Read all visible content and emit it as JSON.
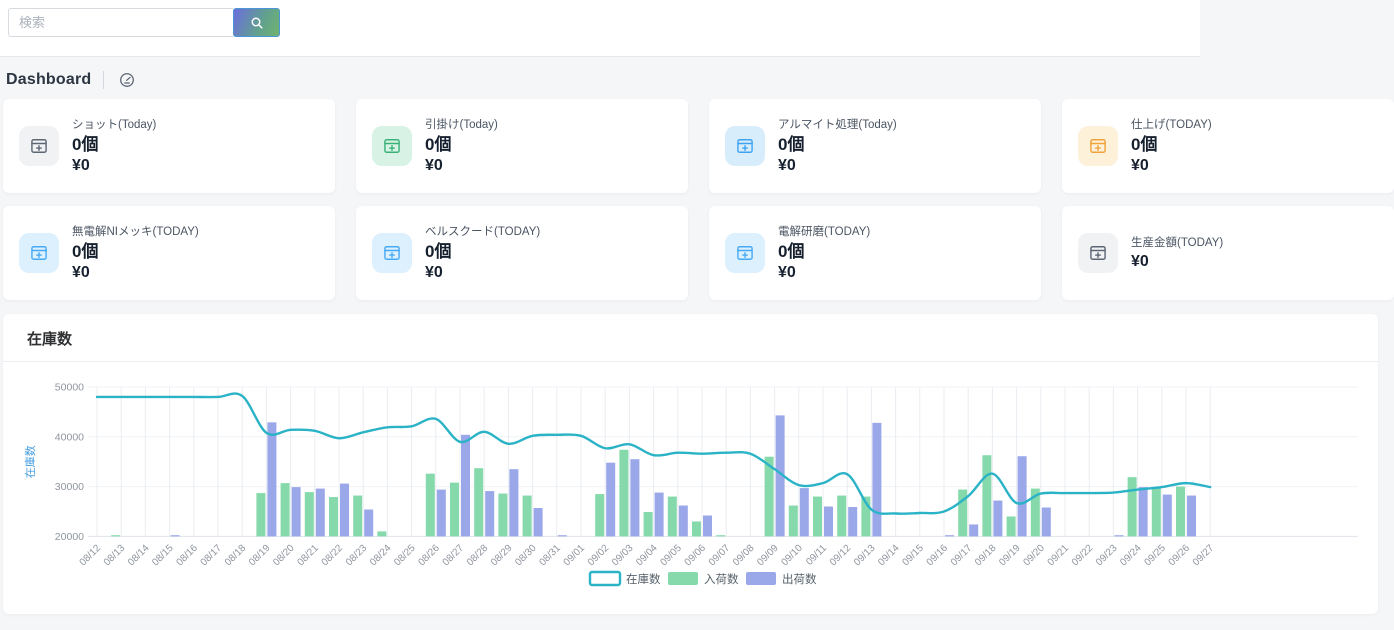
{
  "topbar": {
    "search_placeholder": "検索",
    "search_icon": "magnifier"
  },
  "page": {
    "title": "Dashboard",
    "title_icon": "gauge-dashboard"
  },
  "stat_cards": [
    {
      "label": "ショット(Today)",
      "count": "0個",
      "amount": "¥0",
      "icon": "machine-calendar-icon",
      "icon_bg": "#f1f2f4",
      "icon_color": "#5d6673"
    },
    {
      "label": "引掛け(Today)",
      "count": "0個",
      "amount": "¥0",
      "icon": "machine-calendar-icon",
      "icon_bg": "#d8f3e5",
      "icon_color": "#38b277"
    },
    {
      "label": "アルマイト処理(Today)",
      "count": "0個",
      "amount": "¥0",
      "icon": "machine-calendar-icon",
      "icon_bg": "#d8edfb",
      "icon_color": "#3ea4f2"
    },
    {
      "label": "仕上げ(TODAY)",
      "count": "0個",
      "amount": "¥0",
      "icon": "machine-calendar-icon",
      "icon_bg": "#fdf1d9",
      "icon_color": "#f0a23b"
    },
    {
      "label": "無電解NIメッキ(TODAY)",
      "count": "0個",
      "amount": "¥0",
      "icon": "machine-calendar-icon",
      "icon_bg": "#dcf0fd",
      "icon_color": "#47aaf6"
    },
    {
      "label": "ベルスクード(TODAY)",
      "count": "0個",
      "amount": "¥0",
      "icon": "machine-calendar-icon",
      "icon_bg": "#dcf0fd",
      "icon_color": "#47aaf6"
    },
    {
      "label": "電解研磨(TODAY)",
      "count": "0個",
      "amount": "¥0",
      "icon": "machine-calendar-icon",
      "icon_bg": "#dcf0fd",
      "icon_color": "#47aaf6"
    },
    {
      "label": "生産金額(TODAY)",
      "count": null,
      "amount": "¥0",
      "icon": "machine-calendar-icon",
      "icon_bg": "#f1f2f4",
      "icon_color": "#5d6673"
    }
  ],
  "inventory_section": {
    "title": "在庫数"
  },
  "chart_data": {
    "type": "line+bar",
    "title": "在庫数",
    "ylabel": "在庫数",
    "ylabel_color": "#459de0",
    "ylim": [
      20000,
      50000
    ],
    "y_ticks": [
      20000,
      30000,
      40000,
      50000
    ],
    "grid": true,
    "legend_position": "bottom-center",
    "categories": [
      "08/12",
      "08/13",
      "08/14",
      "08/15",
      "08/16",
      "08/17",
      "08/18",
      "08/19",
      "08/20",
      "08/21",
      "08/22",
      "08/23",
      "08/24",
      "08/25",
      "08/26",
      "08/27",
      "08/28",
      "08/29",
      "08/30",
      "08/31",
      "09/01",
      "09/02",
      "09/03",
      "09/04",
      "09/05",
      "09/06",
      "09/07",
      "09/08",
      "09/09",
      "09/10",
      "09/11",
      "09/12",
      "09/13",
      "09/14",
      "09/15",
      "09/16",
      "09/17",
      "09/18",
      "09/19",
      "09/20",
      "09/21",
      "09/22",
      "09/23",
      "09/24",
      "09/25",
      "09/26",
      "09/27"
    ],
    "series": [
      {
        "name": "在庫数",
        "type": "line",
        "color": "#2ab3c6",
        "values": [
          48000,
          48000,
          48000,
          48000,
          48000,
          48000,
          48200,
          40800,
          41400,
          41200,
          39700,
          40900,
          41900,
          42100,
          43600,
          39000,
          41000,
          38600,
          40200,
          40400,
          40200,
          37700,
          38500,
          36300,
          36800,
          36600,
          36800,
          36600,
          33500,
          30300,
          30700,
          32500,
          25400,
          24600,
          24700,
          25000,
          28100,
          32600,
          26700,
          28600,
          28700,
          28700,
          28800,
          29400,
          29900,
          30700,
          29900
        ]
      },
      {
        "name": "入荷数",
        "type": "bar",
        "color": "#85d9ab",
        "values": [
          null,
          20200,
          null,
          null,
          null,
          null,
          null,
          28700,
          30700,
          28900,
          27900,
          28200,
          21000,
          null,
          32600,
          30800,
          33700,
          28600,
          28200,
          null,
          null,
          28500,
          37400,
          24900,
          28000,
          23000,
          20200,
          null,
          36000,
          26200,
          28000,
          28200,
          28000,
          null,
          null,
          null,
          29400,
          36300,
          24000,
          29600,
          null,
          null,
          null,
          31900,
          29900,
          30000,
          null
        ]
      },
      {
        "name": "出荷数",
        "type": "bar",
        "color": "#9aa7e9",
        "values": [
          null,
          null,
          null,
          20200,
          null,
          null,
          null,
          42900,
          29900,
          29600,
          30600,
          25400,
          null,
          null,
          29400,
          40400,
          29100,
          33500,
          25700,
          20200,
          null,
          34800,
          35500,
          28800,
          26200,
          24200,
          null,
          null,
          44300,
          29700,
          26000,
          25900,
          42800,
          null,
          null,
          20200,
          22400,
          27200,
          36100,
          25800,
          null,
          null,
          20100,
          29900,
          28400,
          28200,
          null
        ]
      }
    ]
  }
}
